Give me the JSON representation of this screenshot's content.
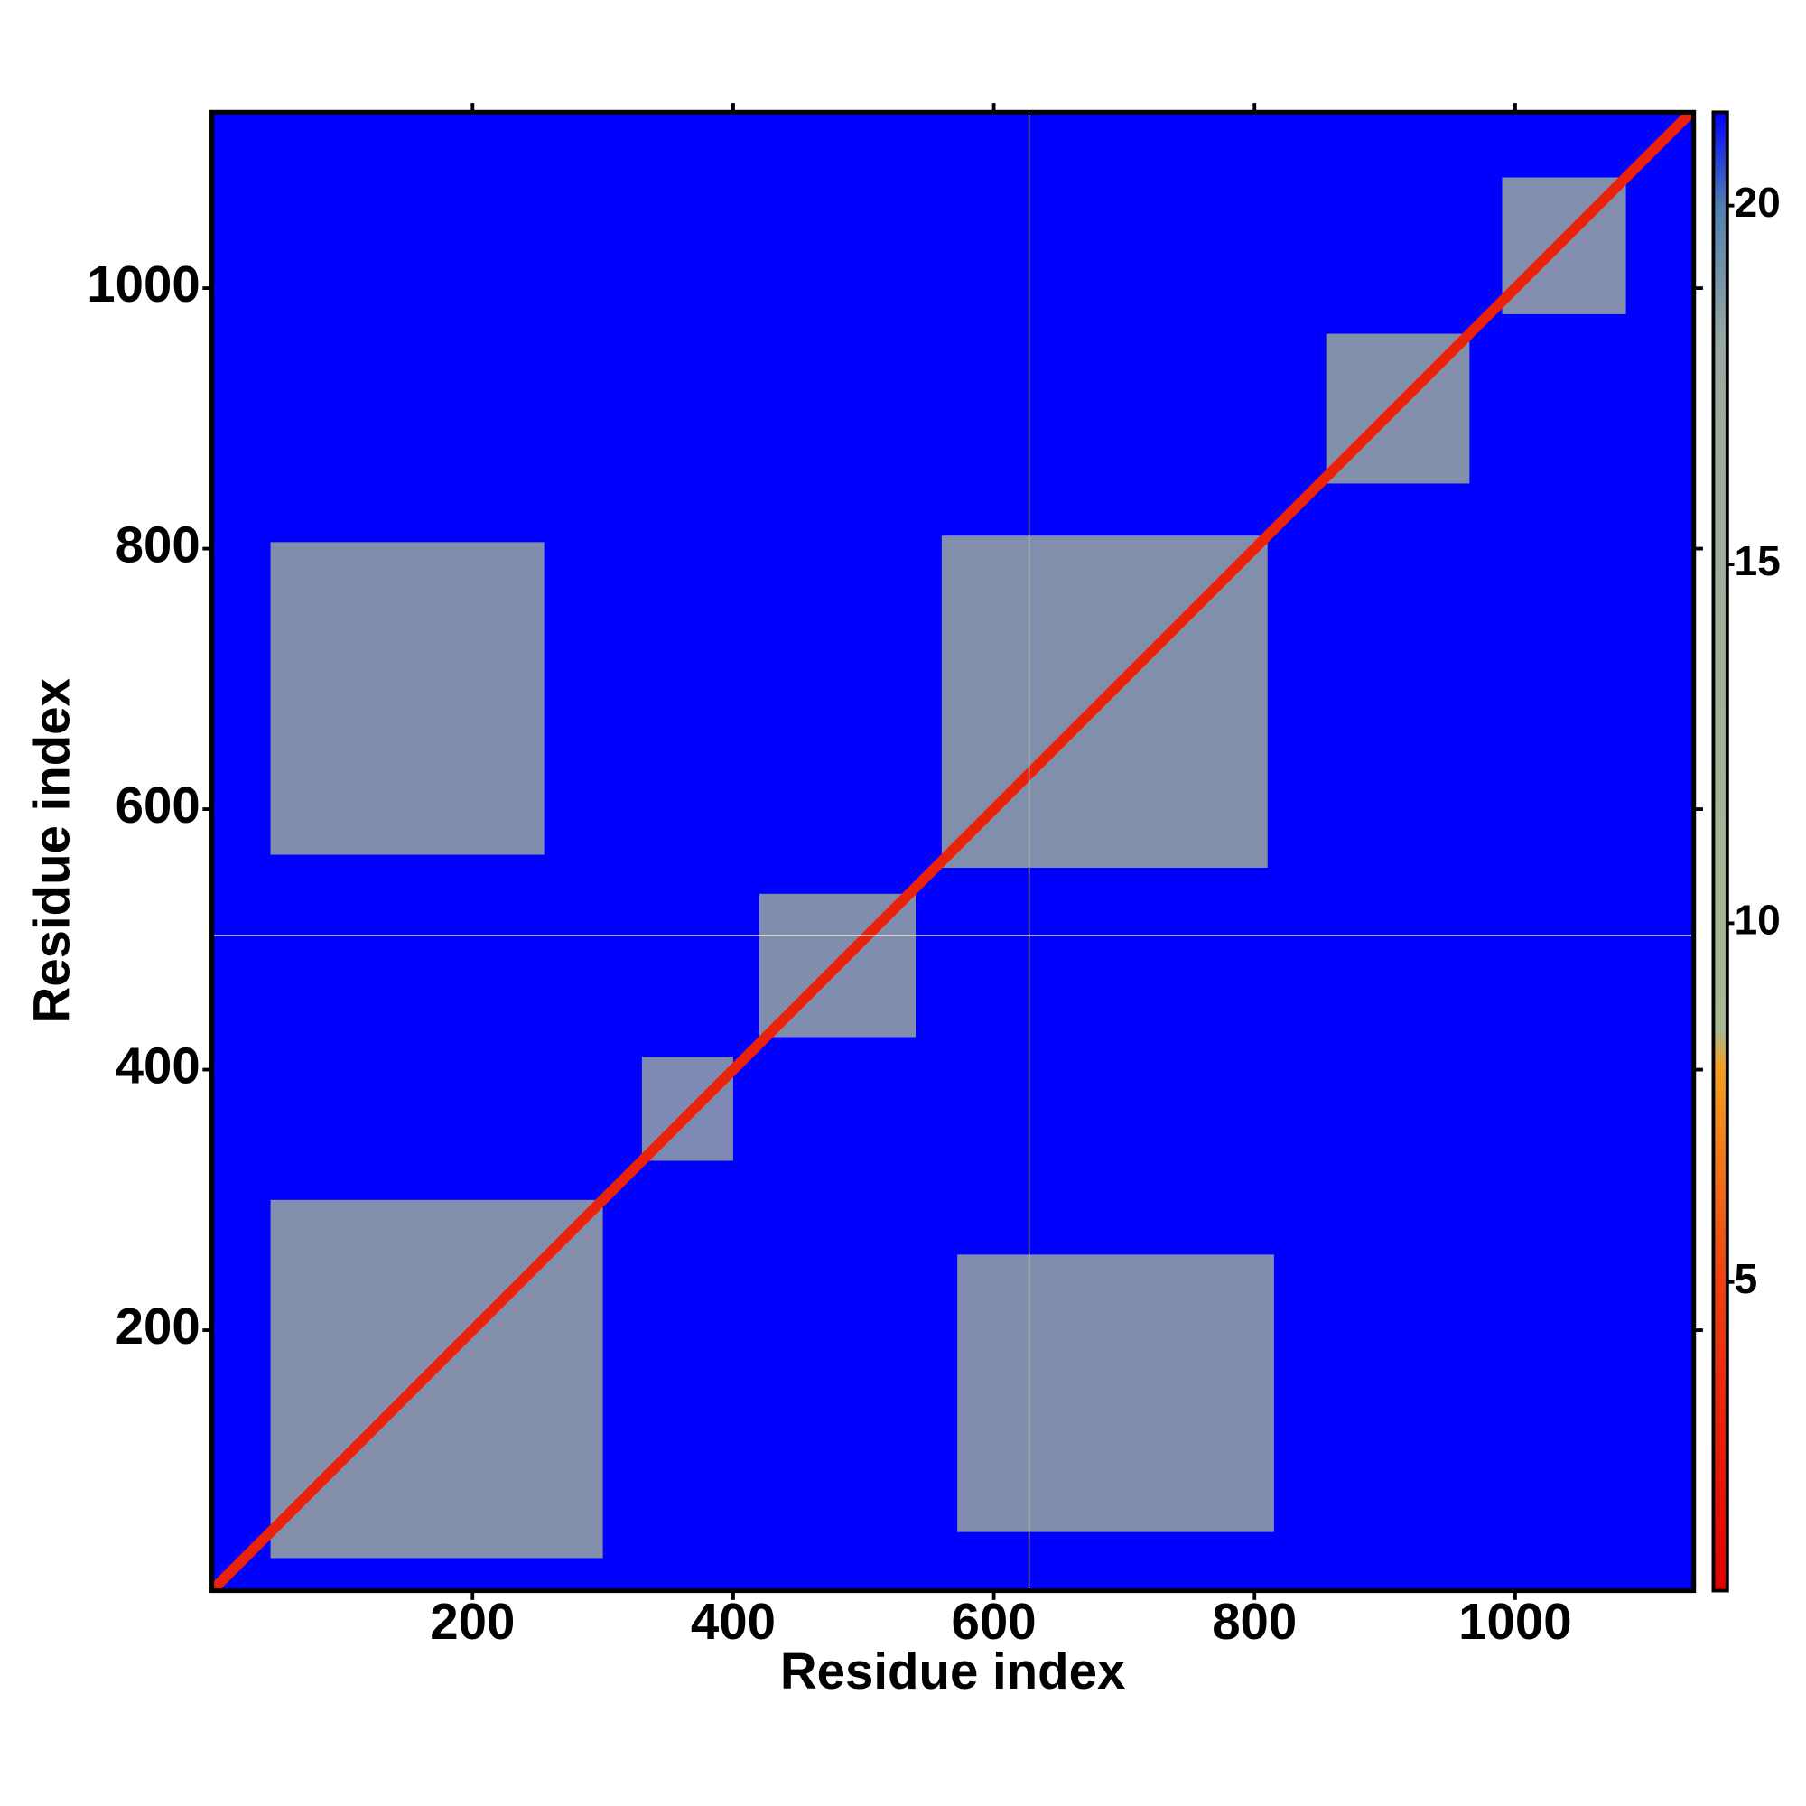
{
  "chart_data": {
    "type": "heatmap",
    "xlabel": "Residue index",
    "ylabel": "Residue index",
    "xlim": [
      0,
      1137
    ],
    "ylim": [
      0,
      1135
    ],
    "xticks": [
      200,
      400,
      600,
      800,
      1000
    ],
    "yticks": [
      200,
      400,
      600,
      800,
      1000
    ],
    "clim": [
      0.7,
      21.3
    ],
    "cticks": [
      5,
      10,
      15,
      20
    ],
    "colorscale": [
      [
        0.7,
        "#e00000"
      ],
      [
        5,
        "#f04010"
      ],
      [
        8,
        "#f4a020"
      ],
      [
        8.5,
        "#a8b890"
      ],
      [
        18,
        "#9aaaa0"
      ],
      [
        20,
        "#5080b0"
      ],
      [
        21.3,
        "#0000ff"
      ]
    ],
    "background_value": 21.3,
    "diagonal_value": 3,
    "vlines": [
      627
    ],
    "hlines": [
      503
    ],
    "cells": [
      {
        "x": [
          45,
          300
        ],
        "y": [
          25,
          300
        ],
        "value": 12
      },
      {
        "x": [
          560,
          810
        ],
        "y": [
          555,
          810
        ],
        "value": 12
      },
      {
        "x": [
          855,
          965
        ],
        "y": [
          850,
          965
        ],
        "value": 12
      },
      {
        "x": [
          990,
          1085
        ],
        "y": [
          980,
          1085
        ],
        "value": 13
      },
      {
        "x": [
          420,
          540
        ],
        "y": [
          425,
          535
        ],
        "value": 14
      },
      {
        "x": [
          45,
          255
        ],
        "y": [
          565,
          805
        ],
        "value": 14
      },
      {
        "x": [
          572,
          815
        ],
        "y": [
          45,
          258
        ],
        "value": 14
      },
      {
        "x": [
          330,
          400
        ],
        "y": [
          330,
          410
        ],
        "value": 16
      }
    ]
  }
}
